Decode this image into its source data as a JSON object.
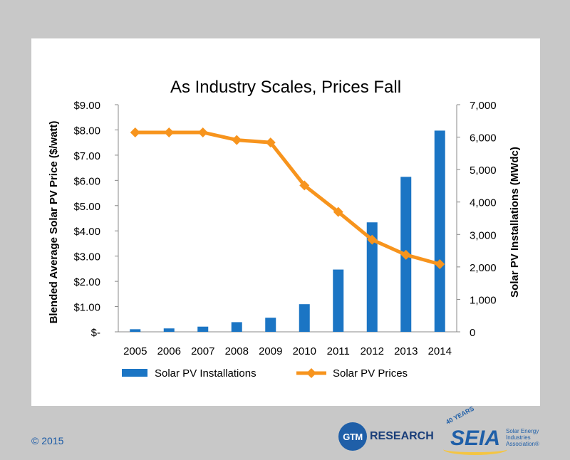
{
  "chart_data": {
    "type": "bar",
    "title": "As Industry Scales, Prices Fall",
    "categories": [
      "2005",
      "2006",
      "2007",
      "2008",
      "2009",
      "2010",
      "2011",
      "2012",
      "2013",
      "2014"
    ],
    "series": [
      {
        "name": "Solar PV Installations",
        "type": "bar",
        "axis": "right",
        "color": "#1b75c4",
        "values": [
          80,
          105,
          160,
          298,
          435,
          852,
          1919,
          3374,
          4776,
          6201
        ]
      },
      {
        "name": "Solar PV Prices",
        "type": "line",
        "axis": "left",
        "color": "#f7941d",
        "values": [
          7.9,
          7.9,
          7.9,
          7.6,
          7.5,
          5.8,
          4.75,
          3.65,
          3.05,
          2.68
        ]
      }
    ],
    "ylabel": "Blended Average Solar PV Price ($/watt)",
    "y2label": "Solar PV Installations (MWdc)",
    "ylim": [
      0,
      9
    ],
    "y2lim": [
      0,
      7000
    ],
    "yticks": [
      "$-",
      "$1.00",
      "$2.00",
      "$3.00",
      "$4.00",
      "$5.00",
      "$6.00",
      "$7.00",
      "$8.00",
      "$9.00"
    ],
    "y2ticks": [
      "0",
      "1,000",
      "2,000",
      "3,000",
      "4,000",
      "5,000",
      "6,000",
      "7,000"
    ],
    "grid": false,
    "legend": "bottom"
  },
  "footer": {
    "copyright": "© 2015",
    "gtm_circle": "GTM",
    "gtm_text": "RESEARCH",
    "seia_years": "40 YEARS",
    "seia_word": "SEIA",
    "seia_sub": "Solar Energy Industries Association®"
  }
}
